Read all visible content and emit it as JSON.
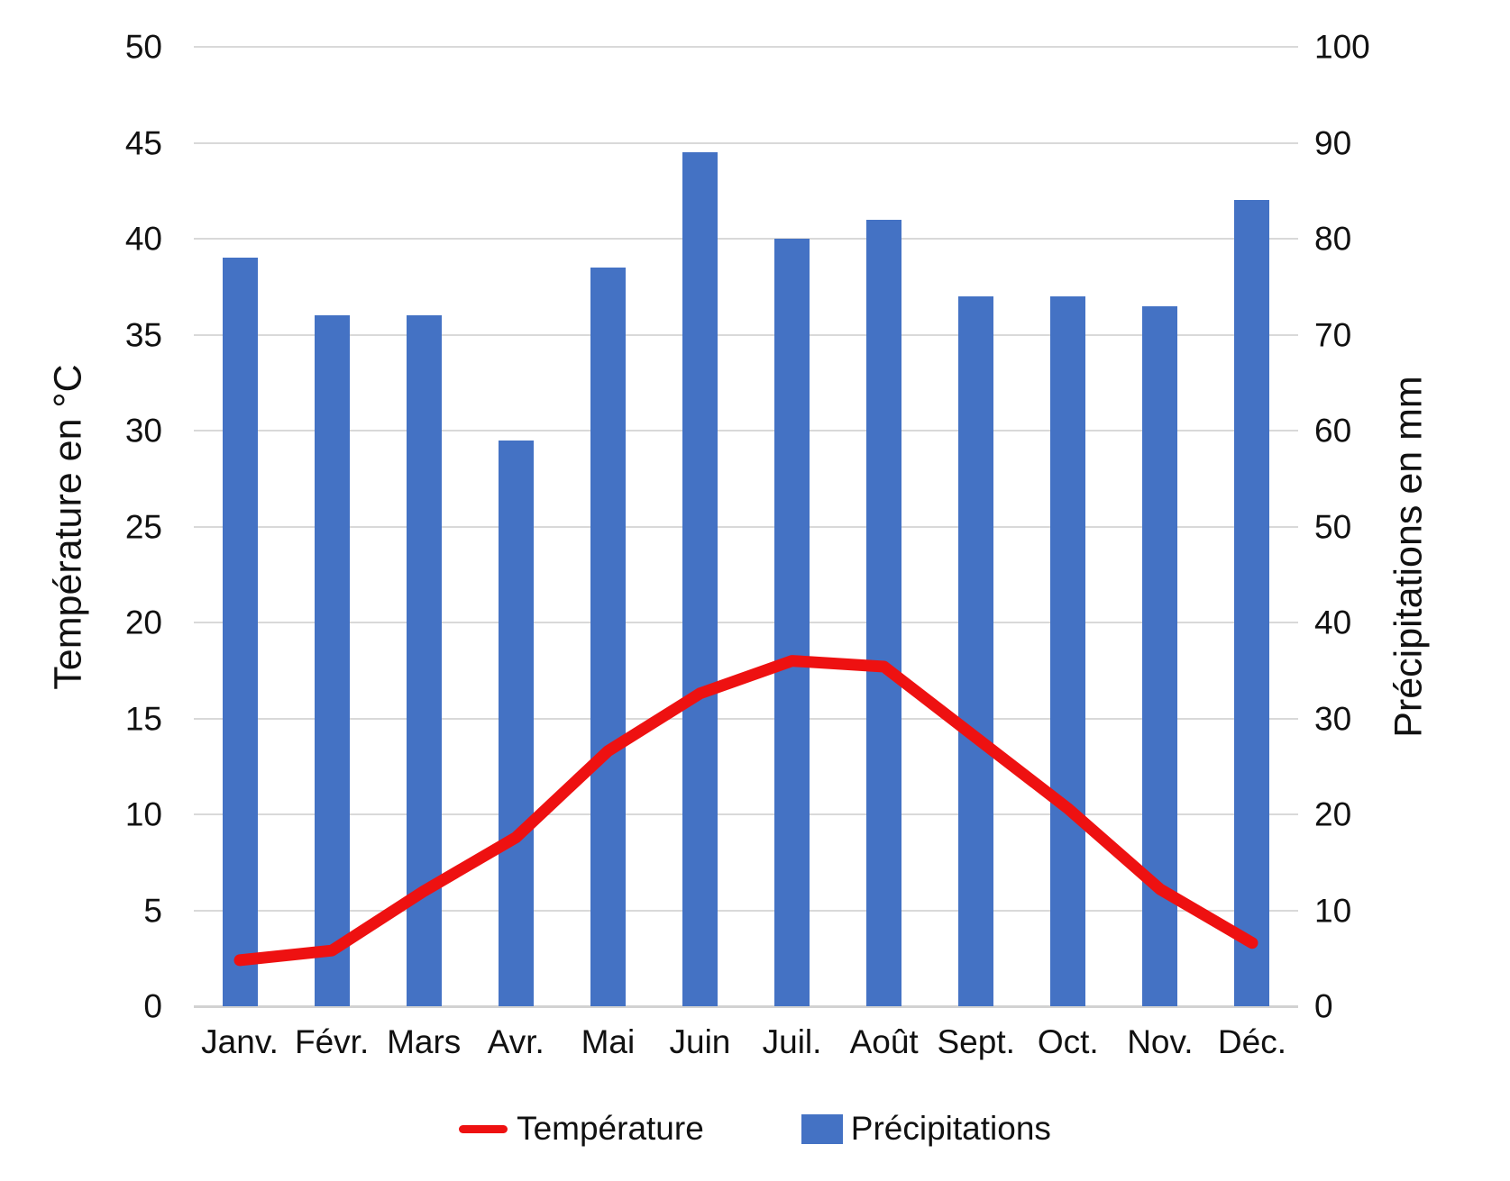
{
  "chart_data": {
    "type": "combo",
    "categories": [
      "Janv.",
      "Févr.",
      "Mars",
      "Avr.",
      "Mai",
      "Juin",
      "Juil.",
      "Août",
      "Sept.",
      "Oct.",
      "Nov.",
      "Déc."
    ],
    "series": [
      {
        "name": "Température",
        "type": "line",
        "axis": "left",
        "unit": "°C",
        "color": "#ee1111",
        "values": [
          2.4,
          2.9,
          6.0,
          8.8,
          13.3,
          16.3,
          18.0,
          17.7,
          14.0,
          10.3,
          6.1,
          3.3
        ]
      },
      {
        "name": "Précipitations",
        "type": "bar",
        "axis": "right",
        "unit": "mm",
        "color": "#4472c4",
        "values": [
          78,
          72,
          72,
          59,
          77,
          89,
          80,
          82,
          74,
          74,
          73,
          84
        ]
      }
    ],
    "left_axis": {
      "title": "Température en °C",
      "min": 0,
      "max": 50,
      "ticks": [
        0,
        5,
        10,
        15,
        20,
        25,
        30,
        35,
        40,
        45,
        50
      ]
    },
    "right_axis": {
      "title": "Précipitations en mm",
      "min": 0,
      "max": 100,
      "ticks": [
        0,
        10,
        20,
        30,
        40,
        50,
        60,
        70,
        80,
        90,
        100
      ]
    },
    "grid": {
      "show": true,
      "color": "#d9d9d9"
    },
    "legend": {
      "position": "bottom",
      "items": [
        {
          "label": "Température",
          "swatch": "line",
          "color": "#ee1111"
        },
        {
          "label": "Précipitations",
          "swatch": "box",
          "color": "#4472c4"
        }
      ]
    }
  }
}
